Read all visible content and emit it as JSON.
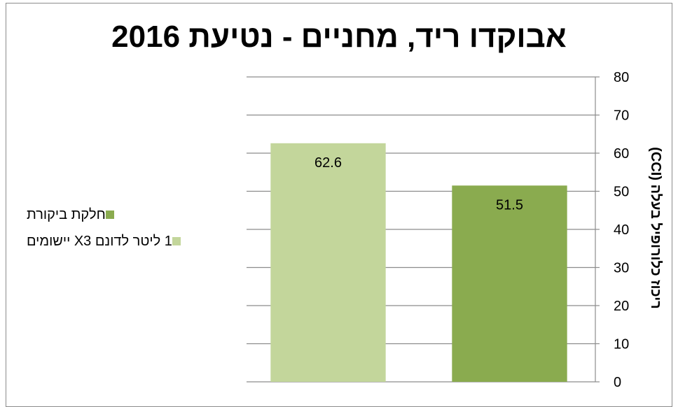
{
  "chart_data": {
    "type": "bar",
    "title": "אבוקדו ריד, מחניים - נטיעת 2016",
    "ylabel": "ריכוז כלורופיל בעלה (CCI)",
    "xlabel": "",
    "ylim": [
      0,
      80
    ],
    "yticks": [
      0,
      10,
      20,
      30,
      40,
      50,
      60,
      70,
      80
    ],
    "y_axis_side": "right",
    "grid": true,
    "legend_position": "left",
    "series": [
      {
        "name": "1 ליטר לדונם X3 יישומים",
        "value": 62.6,
        "label": "62.6",
        "color": "#c3d69b"
      },
      {
        "name": "חלקת ביקורת",
        "value": 51.5,
        "label": "51.5",
        "color": "#8aab4f"
      }
    ],
    "legend": [
      {
        "label": "חלקת ביקורת",
        "color": "#8aab4f"
      },
      {
        "label": "1 ליטר לדונם X3 יישומים",
        "color": "#c3d69b"
      }
    ]
  }
}
